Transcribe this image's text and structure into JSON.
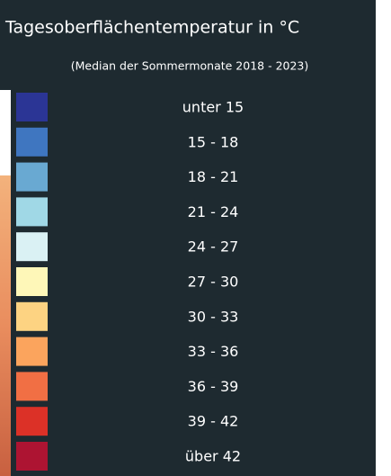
{
  "legend": {
    "title": "Tagesoberflächentemperatur in °C",
    "subtitle": "(Median der Sommermonate 2018 - 2023)",
    "items": [
      {
        "label": "unter 15",
        "color": "#2b3595"
      },
      {
        "label": "15 - 18",
        "color": "#3f76c0"
      },
      {
        "label": "18 - 21",
        "color": "#69a9d2"
      },
      {
        "label": "21 - 24",
        "color": "#a0d8e6"
      },
      {
        "label": "24 - 27",
        "color": "#daf1f4"
      },
      {
        "label": "27 - 30",
        "color": "#fef7b8"
      },
      {
        "label": "30 - 33",
        "color": "#fdd382"
      },
      {
        "label": "33 - 36",
        "color": "#fba45d"
      },
      {
        "label": "36 - 39",
        "color": "#f16f44"
      },
      {
        "label": "39 - 42",
        "color": "#dc3127"
      },
      {
        "label": "über 42",
        "color": "#ad1432"
      }
    ]
  }
}
